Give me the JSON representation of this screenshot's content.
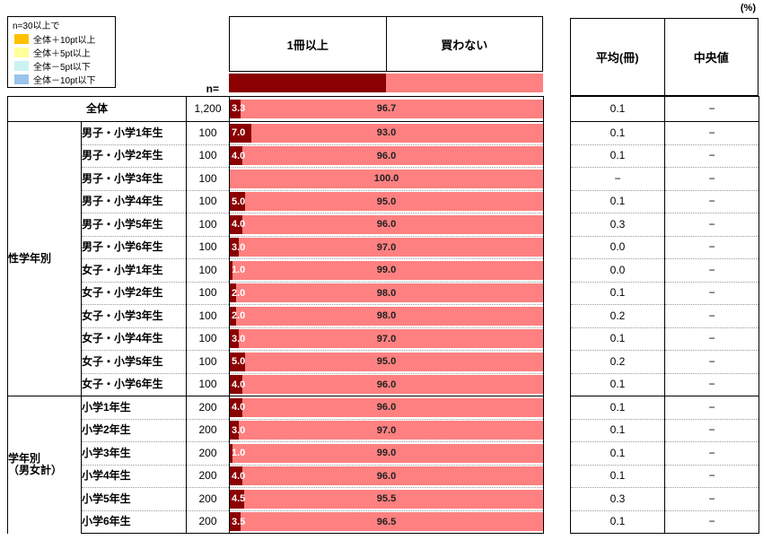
{
  "unit_label": "(%)",
  "n_header": "n=",
  "legend": {
    "title": "n=30以上で",
    "items": [
      {
        "label": "全体＋10pt以上",
        "color": "#FFC000"
      },
      {
        "label": "全体＋5pt以上",
        "color": "#FFFF99"
      },
      {
        "label": "全体－5pt以下",
        "color": "#CCF2F2"
      },
      {
        "label": "全体－10pt以下",
        "color": "#99C4EC"
      }
    ]
  },
  "columns": {
    "bought": "1冊以上",
    "not_bought": "買わない",
    "average": "平均(冊)",
    "median": "中央値"
  },
  "colors": {
    "bought": "#8B0000",
    "not_bought": "#FF8080"
  },
  "groups": {
    "g1": "性学年別",
    "g2_line1": "学年別",
    "g2_line2": "（男女計）"
  },
  "rows": [
    {
      "label": "全体",
      "n": "1,200",
      "v1": 3.3,
      "v1_label": "3.3",
      "v2_label": "96.7",
      "avg": "0.1",
      "med": "−"
    },
    {
      "label": "男子・小学1年生",
      "n": "100",
      "v1": 7.0,
      "v1_label": "7.0",
      "v2_label": "93.0",
      "avg": "0.1",
      "med": "−"
    },
    {
      "label": "男子・小学2年生",
      "n": "100",
      "v1": 4.0,
      "v1_label": "4.0",
      "v2_label": "96.0",
      "avg": "0.1",
      "med": "−"
    },
    {
      "label": "男子・小学3年生",
      "n": "100",
      "v1": 0.0,
      "v1_label": "",
      "v2_label": "100.0",
      "avg": "−",
      "med": "−"
    },
    {
      "label": "男子・小学4年生",
      "n": "100",
      "v1": 5.0,
      "v1_label": "5.0",
      "v2_label": "95.0",
      "avg": "0.1",
      "med": "−"
    },
    {
      "label": "男子・小学5年生",
      "n": "100",
      "v1": 4.0,
      "v1_label": "4.0",
      "v2_label": "96.0",
      "avg": "0.3",
      "med": "−"
    },
    {
      "label": "男子・小学6年生",
      "n": "100",
      "v1": 3.0,
      "v1_label": "3.0",
      "v2_label": "97.0",
      "avg": "0.0",
      "med": "−"
    },
    {
      "label": "女子・小学1年生",
      "n": "100",
      "v1": 1.0,
      "v1_label": "1.0",
      "v2_label": "99.0",
      "avg": "0.0",
      "med": "−"
    },
    {
      "label": "女子・小学2年生",
      "n": "100",
      "v1": 2.0,
      "v1_label": "2.0",
      "v2_label": "98.0",
      "avg": "0.1",
      "med": "−"
    },
    {
      "label": "女子・小学3年生",
      "n": "100",
      "v1": 2.0,
      "v1_label": "2.0",
      "v2_label": "98.0",
      "avg": "0.2",
      "med": "−"
    },
    {
      "label": "女子・小学4年生",
      "n": "100",
      "v1": 3.0,
      "v1_label": "3.0",
      "v2_label": "97.0",
      "avg": "0.1",
      "med": "−"
    },
    {
      "label": "女子・小学5年生",
      "n": "100",
      "v1": 5.0,
      "v1_label": "5.0",
      "v2_label": "95.0",
      "avg": "0.2",
      "med": "−"
    },
    {
      "label": "女子・小学6年生",
      "n": "100",
      "v1": 4.0,
      "v1_label": "4.0",
      "v2_label": "96.0",
      "avg": "0.1",
      "med": "−"
    },
    {
      "label": "小学1年生",
      "n": "200",
      "v1": 4.0,
      "v1_label": "4.0",
      "v2_label": "96.0",
      "avg": "0.1",
      "med": "−"
    },
    {
      "label": "小学2年生",
      "n": "200",
      "v1": 3.0,
      "v1_label": "3.0",
      "v2_label": "97.0",
      "avg": "0.1",
      "med": "−"
    },
    {
      "label": "小学3年生",
      "n": "200",
      "v1": 1.0,
      "v1_label": "1.0",
      "v2_label": "99.0",
      "avg": "0.1",
      "med": "−"
    },
    {
      "label": "小学4年生",
      "n": "200",
      "v1": 4.0,
      "v1_label": "4.0",
      "v2_label": "96.0",
      "avg": "0.1",
      "med": "−"
    },
    {
      "label": "小学5年生",
      "n": "200",
      "v1": 4.5,
      "v1_label": "4.5",
      "v2_label": "95.5",
      "avg": "0.3",
      "med": "−"
    },
    {
      "label": "小学6年生",
      "n": "200",
      "v1": 3.5,
      "v1_label": "3.5",
      "v2_label": "96.5",
      "avg": "0.1",
      "med": "−"
    }
  ],
  "chart_data": {
    "type": "bar",
    "orientation": "horizontal_stacked",
    "unit": "%",
    "xlim": [
      0,
      100
    ],
    "categories": [
      "全体",
      "男子・小学1年生",
      "男子・小学2年生",
      "男子・小学3年生",
      "男子・小学4年生",
      "男子・小学5年生",
      "男子・小学6年生",
      "女子・小学1年生",
      "女子・小学2年生",
      "女子・小学3年生",
      "女子・小学4年生",
      "女子・小学5年生",
      "女子・小学6年生",
      "小学1年生",
      "小学2年生",
      "小学3年生",
      "小学4年生",
      "小学5年生",
      "小学6年生"
    ],
    "n": [
      1200,
      100,
      100,
      100,
      100,
      100,
      100,
      100,
      100,
      100,
      100,
      100,
      100,
      200,
      200,
      200,
      200,
      200,
      200
    ],
    "series": [
      {
        "name": "1冊以上",
        "color": "#8B0000",
        "values": [
          3.3,
          7.0,
          4.0,
          0.0,
          5.0,
          4.0,
          3.0,
          1.0,
          2.0,
          2.0,
          3.0,
          5.0,
          4.0,
          4.0,
          3.0,
          1.0,
          4.0,
          4.5,
          3.5
        ]
      },
      {
        "name": "買わない",
        "color": "#FF8080",
        "values": [
          96.7,
          93.0,
          96.0,
          100.0,
          95.0,
          96.0,
          97.0,
          99.0,
          98.0,
          98.0,
          97.0,
          95.0,
          96.0,
          96.0,
          97.0,
          99.0,
          96.0,
          95.5,
          96.5
        ]
      }
    ],
    "average_books": [
      "0.1",
      "0.1",
      "0.1",
      "−",
      "0.1",
      "0.3",
      "0.0",
      "0.0",
      "0.1",
      "0.2",
      "0.1",
      "0.2",
      "0.1",
      "0.1",
      "0.1",
      "0.1",
      "0.1",
      "0.3",
      "0.1"
    ],
    "median_books": [
      "−",
      "−",
      "−",
      "−",
      "−",
      "−",
      "−",
      "−",
      "−",
      "−",
      "−",
      "−",
      "−",
      "−",
      "−",
      "−",
      "−",
      "−",
      "−"
    ],
    "row_groups": [
      {
        "name": "",
        "rows": [
          0
        ]
      },
      {
        "name": "性学年別",
        "rows": [
          1,
          2,
          3,
          4,
          5,
          6,
          7,
          8,
          9,
          10,
          11,
          12
        ]
      },
      {
        "name": "学年別（男女計）",
        "rows": [
          13,
          14,
          15,
          16,
          17,
          18
        ]
      }
    ],
    "legend_note": {
      "title": "n=30以上で",
      "entries": [
        "全体＋10pt以上",
        "全体＋5pt以上",
        "全体－5pt以下",
        "全体－10pt以下"
      ]
    }
  }
}
